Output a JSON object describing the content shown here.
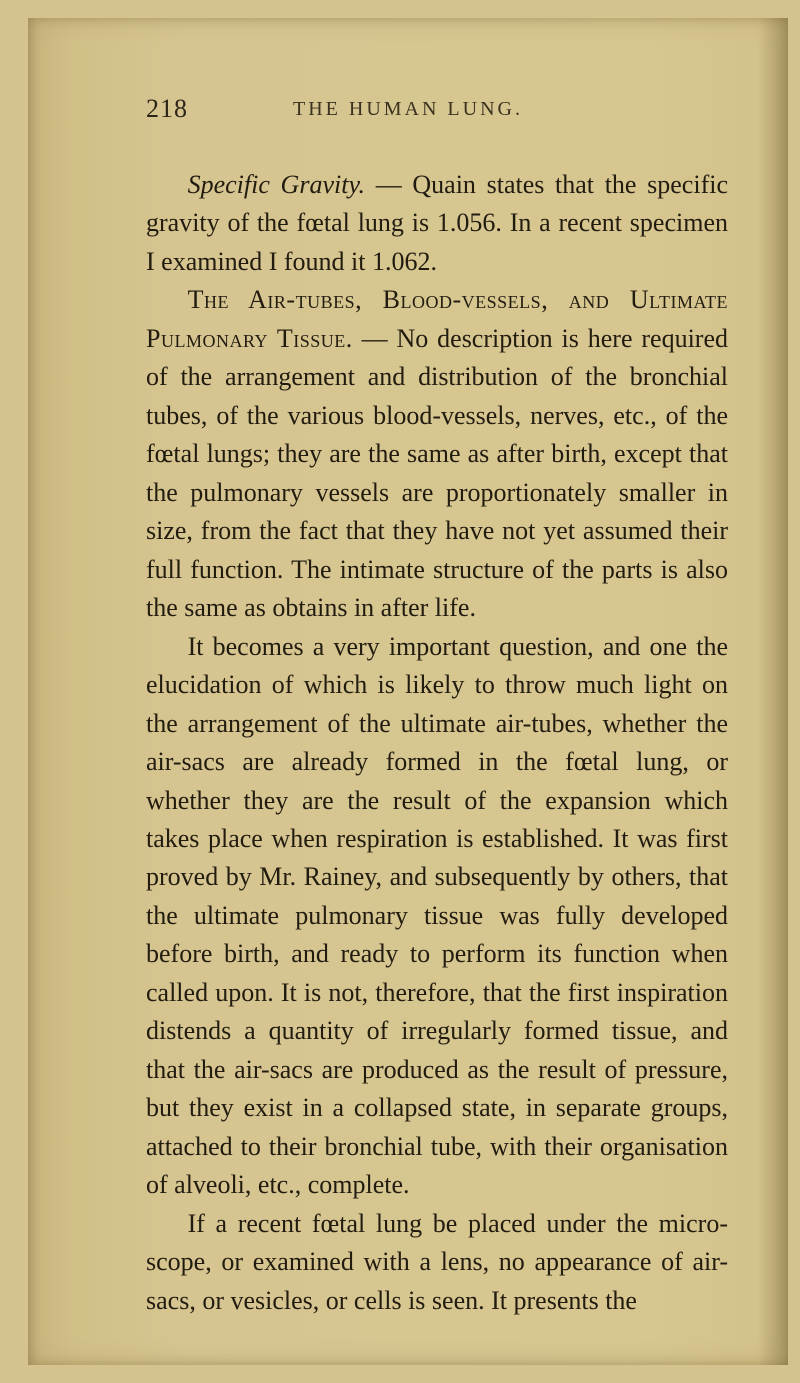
{
  "page": {
    "number": "218",
    "running_head": "THE HUMAN LUNG."
  },
  "paragraphs": {
    "p1_a": "Specific Gravity.",
    "p1_b": " — Quain states that the specific gravity of the fœtal lung is 1.056. In a recent specimen I examined I found it 1.062.",
    "p2_a": "The Air-tubes, Blood-vessels, and Ultimate Pulmonary Tissue.",
    "p2_b": " — No description is here re­quired of the arrangement and distribution of the bronchial tubes, of the various blood-vessels, nerves, etc., of the fœtal lungs; they are the same as after birth, except that the pulmonary vessels are pro­portionately smaller in size, from the fact that they have not yet assumed their full function. The inti­mate structure of the parts is also the same as obtains in after life.",
    "p3": "It becomes a very important question, and one the elucidation of which is likely to throw much light on the arrangement of the ultimate air-tubes, whether the air-sacs are already formed in the fœtal lung, or whether they are the result of the expansion which takes place when respiration is established. It was first proved by Mr. Rainey, and subsequently by others, that the ultimate pulmonary tissue was fully developed before birth, and ready to perform its function when called upon. It is not, therefore, that the first inspiration distends a quantity of irregularly formed tissue, and that the air-sacs are produced as the result of pressure, but they exist in a collapsed state, in separate groups, attached to their bronchial tube, with their organisation of alveoli, etc., com­plete.",
    "p4": "If a recent fœtal lung be placed under the micro­scope, or examined with a lens, no appearance of air-sacs, or vesicles, or cells is seen. It presents the"
  },
  "style": {
    "page_bg": "#d4c28f",
    "text_color": "#221c10",
    "font_size_body": 26,
    "font_size_head": 20,
    "line_height": 1.48
  }
}
